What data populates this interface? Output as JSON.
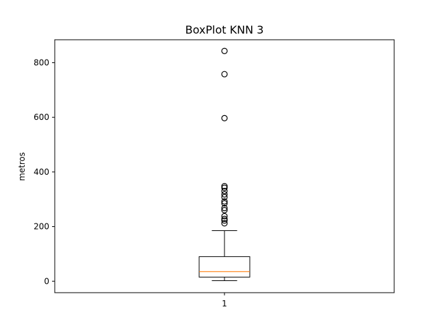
{
  "chart_data": {
    "type": "boxplot",
    "title": "BoxPlot KNN 3",
    "xlabel": "",
    "ylabel": "metros",
    "categories": [
      "1"
    ],
    "ylim": [
      -42,
      884
    ],
    "yticks": [
      0,
      200,
      400,
      600,
      800
    ],
    "grid": false,
    "box": {
      "whisker_low": 2,
      "q1": 15,
      "median": 35,
      "q3": 90,
      "whisker_high": 185,
      "outliers": [
        212,
        222,
        228,
        238,
        260,
        268,
        285,
        292,
        308,
        318,
        330,
        342,
        348,
        597,
        758,
        843
      ]
    },
    "colors": {
      "box": "#000000",
      "median": "#ff7f0e",
      "outlier_edge": "#000000"
    }
  }
}
